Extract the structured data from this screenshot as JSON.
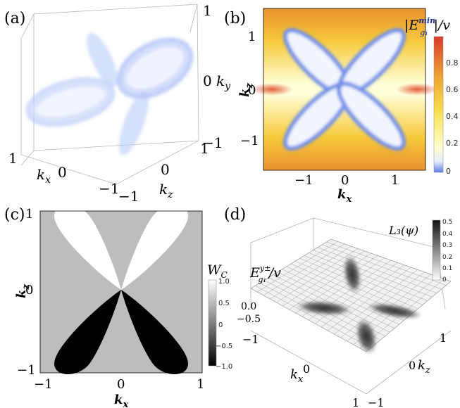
{
  "panel_a": {
    "label": "(a)",
    "ky_ticks": [
      "1",
      "0",
      "−1"
    ],
    "ky_label_k": "k",
    "ky_label_sub": "y",
    "kx_ticks": [
      "1",
      "0",
      "−1"
    ],
    "kx_label_k": "k",
    "kx_label_sub": "x",
    "kz_ticks": [
      "−1",
      "0",
      "1"
    ],
    "kz_label_k": "k",
    "kz_label_sub": "z"
  },
  "panel_b": {
    "label": "(b)",
    "x_ticks": [
      "−1",
      "0",
      "1"
    ],
    "y_ticks": [
      "1",
      "0",
      "−1"
    ],
    "xlabel_k": "k",
    "xlabel_sub": "x",
    "ylabel_k": "k",
    "ylabel_sub": "z",
    "colorbar_title_pre": "|E",
    "colorbar_title_sup": "min",
    "colorbar_title_sub": "g₁",
    "colorbar_title_post": "|/v",
    "colorbar_ticks": [
      "0.8",
      "0.6",
      "0.4",
      "0.2",
      "0"
    ]
  },
  "panel_c": {
    "label": "(c)",
    "x_ticks": [
      "−1",
      "0",
      "1"
    ],
    "y_ticks": [
      "1",
      "0",
      "−1"
    ],
    "xlabel_k": "k",
    "xlabel_sub": "x",
    "ylabel_k": "k",
    "ylabel_sub": "z",
    "colorbar_title_main": "W",
    "colorbar_title_sub": "C",
    "colorbar_ticks": [
      "1.0",
      "0.5",
      "0",
      "−0.5",
      "−1.0"
    ]
  },
  "panel_d": {
    "label": "(d)",
    "zlabel_main": "E",
    "zlabel_sup": "y±",
    "zlabel_sub": "g₁",
    "zlabel_post": "/v",
    "z_ticks": [
      "0.0",
      "−0.5"
    ],
    "kx_ticks": [
      "−1",
      "0",
      "1"
    ],
    "kx_label_k": "k",
    "kx_label_sub": "x",
    "kz_ticks": [
      "1",
      "0",
      "−1"
    ],
    "kz_label_k": "k",
    "kz_label_sub": "z",
    "colorbar_title": "L₃(ψ)",
    "colorbar_ticks": [
      "0.5",
      "0.4",
      "0.3",
      "0.2",
      "0.1",
      "0"
    ]
  }
}
